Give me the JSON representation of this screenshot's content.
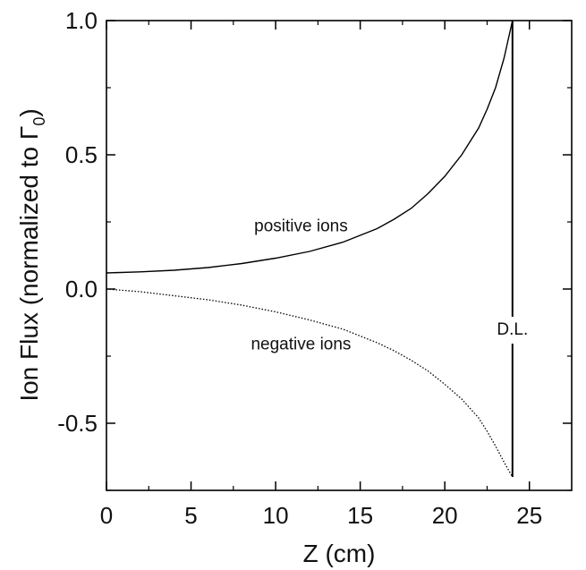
{
  "chart_data": {
    "type": "line",
    "title": "",
    "xlabel": "Z (cm)",
    "ylabel": "Ion Flux (normalized to Γ",
    "ylabel_subscript": "0",
    "ylabel_close": ")",
    "xlim": [
      0,
      27.5
    ],
    "ylim": [
      -0.75,
      1.0
    ],
    "x_ticks": [
      0,
      5,
      10,
      15,
      20,
      25
    ],
    "x_tick_labels": [
      "0",
      "5",
      "10",
      "15",
      "20",
      "25"
    ],
    "y_ticks": [
      -0.5,
      0.0,
      0.5,
      1.0
    ],
    "y_tick_labels": [
      "-0.5",
      "0.0",
      "0.5",
      "1.0"
    ],
    "grid": false,
    "legend": "none",
    "series": [
      {
        "style": "solid",
        "x": [
          0,
          2,
          4,
          6,
          8,
          10,
          12,
          14,
          16,
          17,
          18,
          19,
          20,
          21,
          22,
          22.5,
          23,
          23.5,
          24
        ],
        "y": [
          0.06,
          0.064,
          0.07,
          0.08,
          0.095,
          0.115,
          0.14,
          0.175,
          0.225,
          0.26,
          0.3,
          0.355,
          0.42,
          0.5,
          0.6,
          0.67,
          0.75,
          0.86,
          1.0
        ]
      },
      {
        "style": "dotted",
        "x": [
          0,
          2,
          4,
          6,
          8,
          10,
          12,
          14,
          16,
          17,
          18,
          19,
          20,
          21,
          22,
          22.5,
          23,
          23.5,
          24
        ],
        "y": [
          0.0,
          -0.01,
          -0.025,
          -0.04,
          -0.06,
          -0.085,
          -0.115,
          -0.15,
          -0.2,
          -0.23,
          -0.265,
          -0.305,
          -0.355,
          -0.41,
          -0.48,
          -0.53,
          -0.585,
          -0.645,
          -0.7
        ]
      }
    ],
    "vline": {
      "x": 24,
      "y_from": -0.7,
      "y_to": 1.0
    },
    "annotations": [
      {
        "text": "positive ions",
        "x": 11.5,
        "y": 0.215
      },
      {
        "text": "negative ions",
        "x": 11.5,
        "y": -0.225
      },
      {
        "text": "D.L.",
        "x": 24,
        "y": -0.17
      }
    ]
  }
}
